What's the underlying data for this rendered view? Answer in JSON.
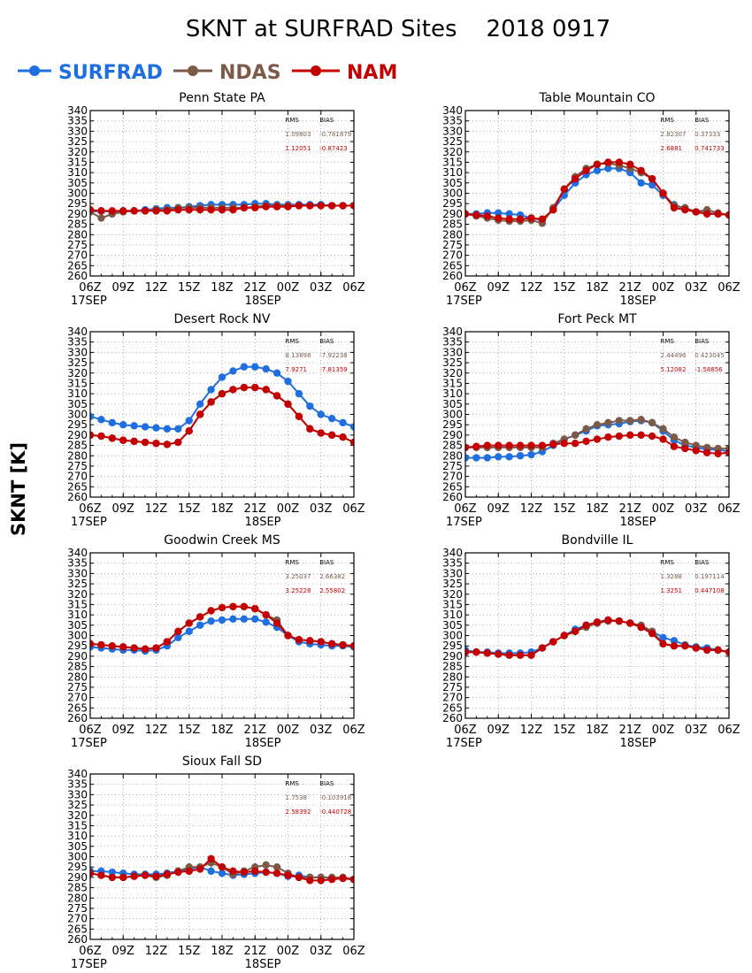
{
  "title": "SKNT at SURFRAD Sites    2018 0917",
  "ylabel": "SKNT [K]",
  "legend": [
    {
      "name": "SURFRAD",
      "color": "#1f6fe0"
    },
    {
      "name": "NDAS",
      "color": "#7b5a48"
    },
    {
      "name": "NAM",
      "color": "#c40000"
    }
  ],
  "stats_headers": {
    "rms": "RMS",
    "bias": "BIAS"
  },
  "x_tick_labels": [
    "06Z",
    "09Z",
    "12Z",
    "15Z",
    "18Z",
    "21Z",
    "00Z",
    "03Z",
    "06Z"
  ],
  "x_date_labels": {
    "start": "17SEP",
    "mid": "18SEP"
  },
  "y_ticks": [
    260,
    265,
    270,
    275,
    280,
    285,
    290,
    295,
    300,
    305,
    310,
    315,
    320,
    325,
    330,
    335,
    340
  ],
  "chart_data": [
    {
      "type": "line",
      "title": "Penn State PA",
      "x": [
        "06Z",
        "07Z",
        "08Z",
        "09Z",
        "10Z",
        "11Z",
        "12Z",
        "13Z",
        "14Z",
        "15Z",
        "16Z",
        "17Z",
        "18Z",
        "19Z",
        "20Z",
        "21Z",
        "22Z",
        "23Z",
        "00Z",
        "01Z",
        "02Z",
        "03Z",
        "04Z",
        "05Z",
        "06Z"
      ],
      "ylim": [
        260,
        340
      ],
      "stats": {
        "ndas": {
          "rms": "1.09803",
          "bias": "-0.781879"
        },
        "nam": {
          "rms": "1.12051",
          "bias": "-0.87423"
        }
      },
      "series": [
        {
          "name": "SURFRAD",
          "values": [
            291,
            291.5,
            291,
            291.5,
            291.5,
            292,
            292.5,
            293,
            293,
            293.5,
            294,
            294.5,
            294.5,
            294.5,
            294.5,
            295,
            295,
            294.5,
            294.5,
            294.5,
            294.5,
            294.5,
            294,
            294,
            294
          ]
        },
        {
          "name": "NDAS",
          "values": [
            291,
            288,
            290,
            291,
            291.5,
            291.5,
            292,
            292,
            293,
            293,
            293,
            293,
            293,
            293,
            293,
            293.5,
            294,
            294,
            294,
            294,
            294,
            294,
            294,
            294,
            294
          ]
        },
        {
          "name": "NAM",
          "values": [
            292,
            291.5,
            291.5,
            291.5,
            291.5,
            291.5,
            291.5,
            291.5,
            292,
            292,
            292,
            292,
            292,
            292,
            293,
            293,
            293.5,
            293.5,
            293.5,
            294,
            294,
            294,
            294,
            294,
            294
          ]
        }
      ]
    },
    {
      "type": "line",
      "title": "Table Mountain CO",
      "x": [
        "06Z",
        "07Z",
        "08Z",
        "09Z",
        "10Z",
        "11Z",
        "12Z",
        "13Z",
        "14Z",
        "15Z",
        "16Z",
        "17Z",
        "18Z",
        "19Z",
        "20Z",
        "21Z",
        "22Z",
        "23Z",
        "00Z",
        "01Z",
        "02Z",
        "03Z",
        "04Z",
        "05Z",
        "06Z"
      ],
      "ylim": [
        260,
        340
      ],
      "stats": {
        "ndas": {
          "rms": "2.82307",
          "bias": "0.37333"
        },
        "nam": {
          "rms": "2.6881",
          "bias": "0.741733"
        }
      },
      "series": [
        {
          "name": "SURFRAD",
          "values": [
            290,
            290,
            290.5,
            290.5,
            290,
            289.5,
            288,
            287,
            292,
            299,
            305,
            309,
            311,
            312,
            312,
            310,
            305,
            304,
            299,
            294.5,
            292.5,
            291,
            290.5,
            290,
            289.5
          ]
        },
        {
          "name": "NDAS",
          "values": [
            290,
            289,
            288,
            287,
            286.5,
            286.5,
            287,
            285.5,
            293,
            302,
            308,
            312,
            314,
            314.5,
            313.5,
            312,
            310,
            307,
            300,
            294,
            293,
            291,
            292,
            290.5,
            289.5
          ]
        },
        {
          "name": "NAM",
          "values": [
            290,
            289.5,
            289,
            288,
            287.5,
            287.5,
            288,
            287.5,
            292,
            302,
            307,
            311,
            314,
            315,
            315,
            314,
            311,
            307,
            300,
            293,
            292,
            291,
            290,
            290,
            289.5
          ]
        }
      ]
    },
    {
      "type": "line",
      "title": "Desert Rock NV",
      "x": [
        "06Z",
        "07Z",
        "08Z",
        "09Z",
        "10Z",
        "11Z",
        "12Z",
        "13Z",
        "14Z",
        "15Z",
        "16Z",
        "17Z",
        "18Z",
        "19Z",
        "20Z",
        "21Z",
        "22Z",
        "23Z",
        "00Z",
        "01Z",
        "02Z",
        "03Z",
        "04Z",
        "05Z",
        "06Z"
      ],
      "ylim": [
        260,
        340
      ],
      "stats": {
        "ndas": {
          "rms": "8.13898",
          "bias": "-7.92238"
        },
        "nam": {
          "rms": "7.9271",
          "bias": "-7.81359"
        }
      },
      "series": [
        {
          "name": "SURFRAD",
          "values": [
            299,
            297.5,
            296,
            295,
            294.5,
            294,
            293.5,
            293,
            293,
            297,
            305,
            312,
            318,
            321,
            323,
            323,
            322,
            320,
            316,
            310,
            304,
            300,
            298,
            296,
            294
          ]
        },
        {
          "name": "NDAS",
          "values": [
            290,
            289.5,
            288.5,
            287.5,
            287,
            286.5,
            286,
            285.5,
            286.5,
            292,
            300,
            306,
            310,
            312,
            313,
            313,
            312,
            309,
            305,
            299,
            293,
            291,
            290,
            289,
            286.5
          ]
        },
        {
          "name": "NAM",
          "values": [
            290,
            289.5,
            288.5,
            287.5,
            287,
            286.5,
            286,
            285.5,
            286.5,
            292,
            300,
            306,
            310,
            312,
            313,
            313,
            312,
            309,
            305,
            299,
            293,
            291,
            290,
            289,
            286.5
          ]
        }
      ]
    },
    {
      "type": "line",
      "title": "Fort Peck MT",
      "x": [
        "06Z",
        "07Z",
        "08Z",
        "09Z",
        "10Z",
        "11Z",
        "12Z",
        "13Z",
        "14Z",
        "15Z",
        "16Z",
        "17Z",
        "18Z",
        "19Z",
        "20Z",
        "21Z",
        "22Z",
        "23Z",
        "00Z",
        "01Z",
        "02Z",
        "03Z",
        "04Z",
        "05Z",
        "06Z"
      ],
      "ylim": [
        260,
        340
      ],
      "stats": {
        "ndas": {
          "rms": "2.44496",
          "bias": "0.423045"
        },
        "nam": {
          "rms": "5.12082",
          "bias": "-1.58856"
        }
      },
      "series": [
        {
          "name": "SURFRAD",
          "values": [
            279,
            279,
            279,
            279.5,
            279.5,
            280,
            280.5,
            282,
            285,
            288,
            290,
            292,
            294.5,
            295,
            295.5,
            296.5,
            297,
            296,
            292,
            287.5,
            285,
            284,
            283,
            283,
            282
          ]
        },
        {
          "name": "NDAS",
          "values": [
            284,
            284,
            284,
            284,
            284,
            284,
            284,
            284,
            286,
            288,
            290,
            293,
            295,
            296,
            297,
            297,
            297.5,
            296,
            293,
            289,
            286.5,
            285,
            284,
            283.5,
            283.5
          ]
        },
        {
          "name": "NAM",
          "values": [
            284,
            284.5,
            285,
            285,
            285,
            285,
            285,
            285,
            285.5,
            286,
            286,
            287,
            288,
            289,
            289.5,
            290,
            290,
            289.5,
            288,
            284.5,
            283.5,
            282.5,
            281.5,
            281,
            281.5
          ]
        }
      ]
    },
    {
      "type": "line",
      "title": "Goodwin Creek MS",
      "x": [
        "06Z",
        "07Z",
        "08Z",
        "09Z",
        "10Z",
        "11Z",
        "12Z",
        "13Z",
        "14Z",
        "15Z",
        "16Z",
        "17Z",
        "18Z",
        "19Z",
        "20Z",
        "21Z",
        "22Z",
        "23Z",
        "00Z",
        "01Z",
        "02Z",
        "03Z",
        "04Z",
        "05Z",
        "06Z"
      ],
      "ylim": [
        260,
        340
      ],
      "stats": {
        "ndas": {
          "rms": "3.25037",
          "bias": "2.66382"
        },
        "nam": {
          "rms": "3.25228",
          "bias": "2.55802"
        }
      },
      "series": [
        {
          "name": "SURFRAD",
          "values": [
            294.5,
            294,
            293.5,
            293,
            293,
            292.5,
            293,
            295,
            299,
            302,
            305,
            307,
            307.5,
            308,
            308,
            308,
            306.5,
            304,
            300,
            297,
            296,
            295.5,
            295,
            295,
            294.5
          ]
        },
        {
          "name": "NDAS",
          "values": [
            296,
            295.5,
            295,
            294.5,
            294,
            293.5,
            294,
            297,
            302,
            306,
            309,
            312,
            313.5,
            314,
            314,
            313,
            310,
            307.5,
            300,
            298,
            297.5,
            297,
            296,
            295.5,
            295
          ]
        },
        {
          "name": "NAM",
          "values": [
            296,
            295.5,
            295,
            294.5,
            294,
            293.5,
            294,
            297,
            302,
            306,
            309,
            312,
            313.5,
            314,
            314,
            313,
            310,
            306,
            300,
            298,
            297.5,
            297,
            296,
            295.5,
            295
          ]
        }
      ]
    },
    {
      "type": "line",
      "title": "Bondville IL",
      "x": [
        "06Z",
        "07Z",
        "08Z",
        "09Z",
        "10Z",
        "11Z",
        "12Z",
        "13Z",
        "14Z",
        "15Z",
        "16Z",
        "17Z",
        "18Z",
        "19Z",
        "20Z",
        "21Z",
        "22Z",
        "23Z",
        "00Z",
        "01Z",
        "02Z",
        "03Z",
        "04Z",
        "05Z",
        "06Z"
      ],
      "ylim": [
        260,
        340
      ],
      "stats": {
        "ndas": {
          "rms": "1.3288",
          "bias": "0.197114"
        },
        "nam": {
          "rms": "1.3251",
          "bias": "0.447108"
        }
      },
      "series": [
        {
          "name": "SURFRAD",
          "values": [
            293,
            292,
            292,
            291.5,
            291.5,
            291.5,
            292,
            294,
            297,
            300,
            303,
            305,
            306.5,
            307.5,
            307,
            306,
            304,
            302,
            299,
            297.5,
            295.5,
            294.5,
            294,
            293,
            292
          ]
        },
        {
          "name": "NDAS",
          "values": [
            292,
            292,
            291.5,
            291,
            290.5,
            290.5,
            290.5,
            294,
            297,
            300,
            302,
            304,
            306,
            307,
            307,
            306,
            305,
            302,
            296,
            295,
            295,
            294,
            293,
            293,
            292
          ]
        },
        {
          "name": "NAM",
          "values": [
            292,
            292,
            291.5,
            291,
            290.5,
            290.5,
            290.5,
            294,
            297,
            300,
            302,
            305,
            306.5,
            307.5,
            307,
            306,
            304,
            301,
            296,
            295,
            295,
            294,
            293,
            293,
            292
          ]
        }
      ]
    },
    {
      "type": "line",
      "title": "Sioux Fall SD",
      "x": [
        "06Z",
        "07Z",
        "08Z",
        "09Z",
        "10Z",
        "11Z",
        "12Z",
        "13Z",
        "14Z",
        "15Z",
        "16Z",
        "17Z",
        "18Z",
        "19Z",
        "20Z",
        "21Z",
        "22Z",
        "23Z",
        "00Z",
        "01Z",
        "02Z",
        "03Z",
        "04Z",
        "05Z",
        "06Z"
      ],
      "ylim": [
        260,
        340
      ],
      "stats": {
        "ndas": {
          "rms": "1.7538",
          "bias": "-0.103918"
        },
        "nam": {
          "rms": "2.58392",
          "bias": "-0.440728"
        }
      },
      "series": [
        {
          "name": "SURFRAD",
          "values": [
            293,
            293,
            292.5,
            292,
            291.5,
            291.5,
            291.5,
            292,
            293,
            294,
            295,
            293,
            292,
            291,
            291.5,
            292,
            292.5,
            292,
            290.5,
            291,
            290,
            290,
            289.5,
            289.5,
            289
          ]
        },
        {
          "name": "NDAS",
          "values": [
            292,
            291,
            290,
            290,
            290.5,
            291,
            290,
            291,
            293,
            295,
            295,
            297,
            295,
            291.5,
            293,
            295,
            296,
            295,
            292,
            290,
            290,
            290,
            290,
            290,
            289
          ]
        },
        {
          "name": "NAM",
          "values": [
            292,
            291,
            290,
            290,
            290.5,
            291,
            290.5,
            291.5,
            292.5,
            293,
            294,
            299,
            295,
            293,
            292.5,
            293,
            292.5,
            292,
            291,
            290,
            288.5,
            288.5,
            289,
            289.5,
            289
          ]
        }
      ]
    }
  ]
}
